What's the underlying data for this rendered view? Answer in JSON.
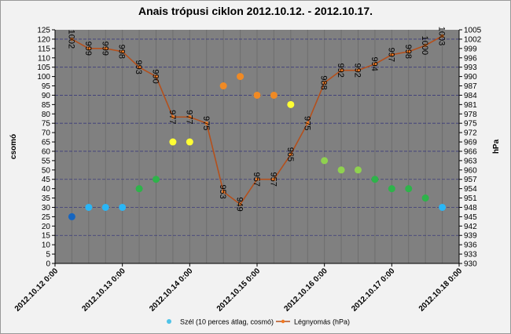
{
  "chart_data": {
    "type": "combo",
    "title": "Anais trópusi ciklon 2012.10.12. - 2012.10.17.",
    "y_label": "csomó",
    "y2_label": "hPa",
    "x": [
      "2012.10.12 6:00",
      "2012.10.12 12:00",
      "2012.10.12 18:00",
      "2012.10.13 0:00",
      "2012.10.13 6:00",
      "2012.10.13 12:00",
      "2012.10.13 18:00",
      "2012.10.14 0:00",
      "2012.10.14 6:00",
      "2012.10.14 12:00",
      "2012.10.14 18:00",
      "2012.10.15 0:00",
      "2012.10.15 6:00",
      "2012.10.15 12:00",
      "2012.10.15 18:00",
      "2012.10.16 0:00",
      "2012.10.16 6:00",
      "2012.10.16 12:00",
      "2012.10.16 18:00",
      "2012.10.17 0:00",
      "2012.10.17 6:00",
      "2012.10.17 12:00",
      "2012.10.17 18:00"
    ],
    "xlim": [
      "2012.10.12 0:00",
      "2012.10.18 0:00"
    ],
    "xticks": [
      "2012.10.12 0:00",
      "2012.10.13 0:00",
      "2012.10.14 0:00",
      "2012.10.15 0:00",
      "2012.10.16 0:00",
      "2012.10.17 0:00",
      "2012.10.18 0:00"
    ],
    "ylim": [
      0,
      125
    ],
    "yticks": [
      0,
      5,
      10,
      15,
      20,
      25,
      30,
      35,
      40,
      45,
      50,
      55,
      60,
      65,
      70,
      75,
      80,
      85,
      90,
      95,
      100,
      105,
      110,
      115,
      120,
      125
    ],
    "y2lim": [
      930,
      1005
    ],
    "y2ticks": [
      930,
      933,
      936,
      939,
      942,
      945,
      948,
      951,
      954,
      957,
      960,
      963,
      966,
      969,
      972,
      975,
      978,
      981,
      984,
      987,
      990,
      993,
      996,
      999,
      1002,
      1005
    ],
    "grid": true,
    "legend": "bottom",
    "series": [
      {
        "name": "Szél (10 perces átlag, cosmó)",
        "type": "scatter",
        "color": "#4fc3e8",
        "values": [
          25,
          30,
          30,
          30,
          40,
          45,
          65,
          65,
          null,
          95,
          100,
          90,
          90,
          85,
          null,
          55,
          50,
          50,
          45,
          40,
          40,
          35,
          30
        ],
        "colors": [
          "#1565c0",
          "#29b6f6",
          "#29b6f6",
          "#29b6f6",
          "#2eb34a",
          "#2eb34a",
          "#ffff33",
          "#ffff33",
          null,
          "#f08a24",
          "#f08a24",
          "#f08a24",
          "#f08a24",
          "#ffff33",
          null,
          "#8fd14f",
          "#8fd14f",
          "#8fd14f",
          "#2eb34a",
          "#2eb34a",
          "#2eb34a",
          "#2eb34a",
          "#29b6f6"
        ]
      },
      {
        "name": "Légnyomás (hPa)",
        "type": "line",
        "axis": "y2",
        "color": "#b4501c",
        "marker_color": "#f07820",
        "values": [
          1002,
          999,
          999,
          998,
          993,
          990,
          977,
          977,
          975,
          953,
          949,
          957,
          957,
          965,
          975,
          988,
          992,
          992,
          994,
          997,
          998,
          1000,
          1003
        ]
      }
    ]
  }
}
